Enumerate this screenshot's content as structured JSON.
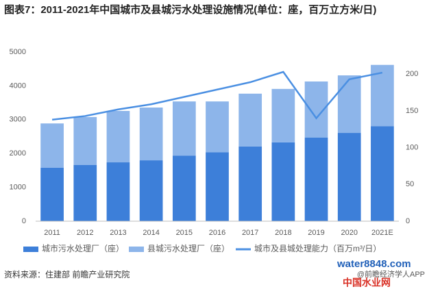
{
  "chart_data": {
    "type": "bar_line",
    "title": "图表7：2011-2021年中国城市及县城污水处理设施情况(单位：座，百万立方米/日)",
    "categories": [
      "2011",
      "2012",
      "2013",
      "2014",
      "2015",
      "2016",
      "2017",
      "2018",
      "2019",
      "2020",
      "2021E"
    ],
    "series": [
      {
        "name": "城市污水处理厂（座）",
        "color": "#3d7fd9",
        "type": "bar",
        "values": [
          1580,
          1660,
          1740,
          1800,
          1940,
          2040,
          2210,
          2330,
          2470,
          2610,
          2810
        ]
      },
      {
        "name": "县城污水处理厂（座）",
        "color": "#8db5ea",
        "type": "bar",
        "values": [
          1310,
          1420,
          1520,
          1560,
          1600,
          1500,
          1560,
          1580,
          1660,
          1700,
          1810
        ]
      },
      {
        "name": "城市及县城处理能力（百万m³/日）",
        "color": "#4a8fe2",
        "type": "line",
        "axis": "y2",
        "values": [
          138,
          143,
          152,
          159,
          169,
          179,
          189,
          203,
          140,
          193,
          202
        ]
      }
    ],
    "ylim": [
      0,
      5000
    ],
    "yticks": [
      0,
      1000,
      2000,
      3000,
      4000,
      5000
    ],
    "y2lim": [
      0,
      230
    ],
    "y2ticks": [
      0,
      50,
      100,
      150,
      200
    ],
    "grid": false,
    "stacked": true,
    "legend": "bottom"
  },
  "source": "资料来源：住建部 前瞻产业研究院",
  "watermark": {
    "site": "water8848.com",
    "site_name": "中国水业网",
    "app": "@前瞻经济学人APP"
  }
}
